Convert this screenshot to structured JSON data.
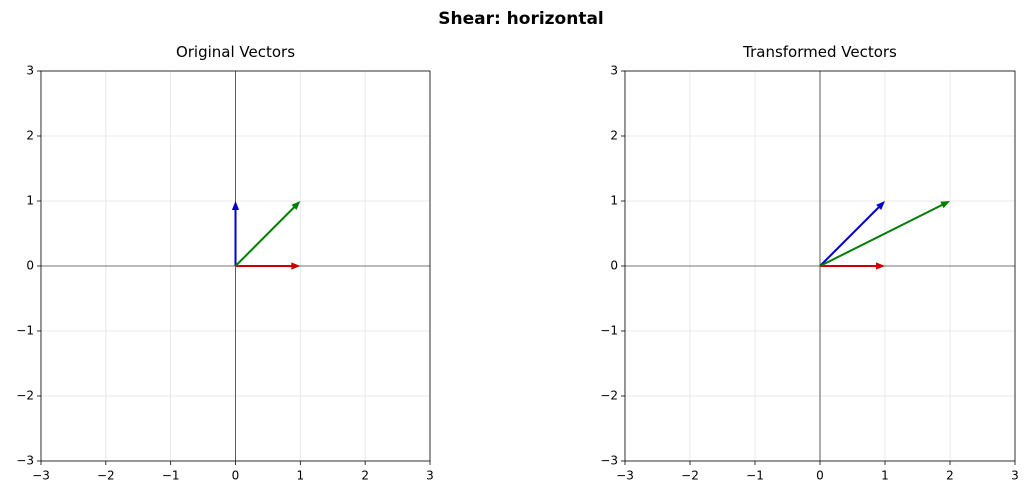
{
  "title": "Shear: horizontal",
  "chart_data": [
    {
      "type": "quiver",
      "title": "Original Vectors",
      "xlim": [
        -3,
        3
      ],
      "ylim": [
        -3,
        3
      ],
      "xticks": [
        {
          "value": -3,
          "label": "−3"
        },
        {
          "value": -2,
          "label": "−2"
        },
        {
          "value": -1,
          "label": "−1"
        },
        0,
        1,
        2,
        3
      ],
      "yticks": [
        {
          "value": -3,
          "label": "−3"
        },
        {
          "value": -2,
          "label": "−2"
        },
        {
          "value": -1,
          "label": "−1"
        },
        0,
        1,
        2,
        3
      ],
      "grid": true,
      "vectors": [
        {
          "color": "#cc0000",
          "start": [
            0,
            0
          ],
          "end": [
            1,
            0
          ]
        },
        {
          "color": "#0000cc",
          "start": [
            0,
            0
          ],
          "end": [
            0,
            1
          ]
        },
        {
          "color": "#007f00",
          "start": [
            0,
            0
          ],
          "end": [
            1,
            1
          ]
        }
      ]
    },
    {
      "type": "quiver",
      "title": "Transformed Vectors",
      "xlim": [
        -3,
        3
      ],
      "ylim": [
        -3,
        3
      ],
      "xticks": [
        {
          "value": -3,
          "label": "−3"
        },
        {
          "value": -2,
          "label": "−2"
        },
        {
          "value": -1,
          "label": "−1"
        },
        0,
        1,
        2,
        3
      ],
      "yticks": [
        {
          "value": -3,
          "label": "−3"
        },
        {
          "value": -2,
          "label": "−2"
        },
        {
          "value": -1,
          "label": "−1"
        },
        0,
        1,
        2,
        3
      ],
      "grid": true,
      "vectors": [
        {
          "color": "#cc0000",
          "start": [
            0,
            0
          ],
          "end": [
            1,
            0
          ]
        },
        {
          "color": "#0000cc",
          "start": [
            0,
            0
          ],
          "end": [
            1,
            1
          ]
        },
        {
          "color": "#007f00",
          "start": [
            0,
            0
          ],
          "end": [
            2,
            1
          ]
        }
      ]
    }
  ]
}
